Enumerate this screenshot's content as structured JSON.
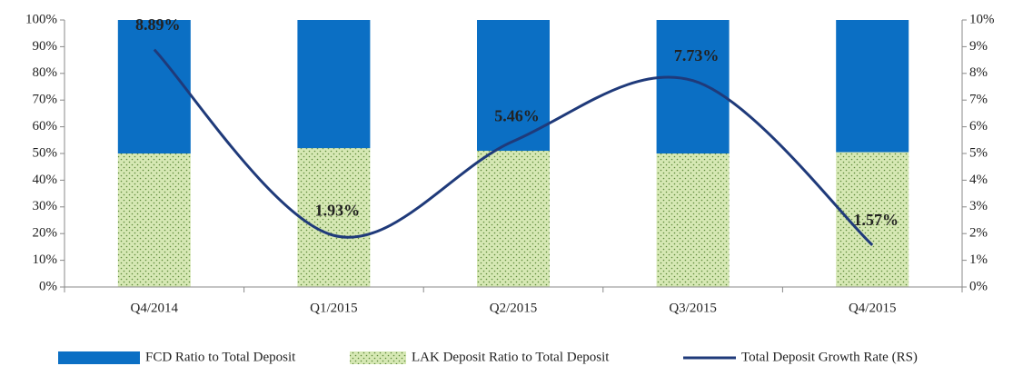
{
  "chart_data": {
    "type": "bar",
    "categories": [
      "Q4/2014",
      "Q1/2015",
      "Q2/2015",
      "Q3/2015",
      "Q4/2015"
    ],
    "series": [
      {
        "name": "FCD Ratio to Total Deposit",
        "type": "bar",
        "color": "#0b6fc4",
        "values": [
          50,
          48,
          49,
          50,
          49.5
        ]
      },
      {
        "name": "LAK Deposit Ratio to Total Deposit",
        "type": "bar",
        "color": "#d6e8b4",
        "values": [
          50,
          52,
          51,
          50,
          50.5
        ]
      },
      {
        "name": "Total Deposit Growth Rate (RS)",
        "type": "line",
        "axis": "y2",
        "color": "#1f3a7a",
        "values": [
          8.89,
          1.93,
          5.46,
          7.73,
          1.57
        ],
        "value_labels": [
          "8.89%",
          "1.93%",
          "5.46%",
          "7.73%",
          "1.57%"
        ]
      }
    ],
    "stacked": true,
    "ylim": [
      0,
      100
    ],
    "yticks": [
      {
        "value": 0,
        "label": "0%"
      },
      {
        "value": 10,
        "label": "10%"
      },
      {
        "value": 20,
        "label": "20%"
      },
      {
        "value": 30,
        "label": "30%"
      },
      {
        "value": 40,
        "label": "40%"
      },
      {
        "value": 50,
        "label": "50%"
      },
      {
        "value": 60,
        "label": "60%"
      },
      {
        "value": 70,
        "label": "70%"
      },
      {
        "value": 80,
        "label": "80%"
      },
      {
        "value": 90,
        "label": "90%"
      },
      {
        "value": 100,
        "label": "100%"
      }
    ],
    "y2lim": [
      0,
      10
    ],
    "y2ticks": [
      {
        "value": 0,
        "label": "0%"
      },
      {
        "value": 1,
        "label": "1%"
      },
      {
        "value": 2,
        "label": "2%"
      },
      {
        "value": 3,
        "label": "3%"
      },
      {
        "value": 4,
        "label": "4%"
      },
      {
        "value": 5,
        "label": "5%"
      },
      {
        "value": 6,
        "label": "6%"
      },
      {
        "value": 7,
        "label": "7%"
      },
      {
        "value": 8,
        "label": "8%"
      },
      {
        "value": 9,
        "label": "9%"
      },
      {
        "value": 10,
        "label": "10%"
      }
    ],
    "grid": false,
    "legend": "bottom"
  }
}
